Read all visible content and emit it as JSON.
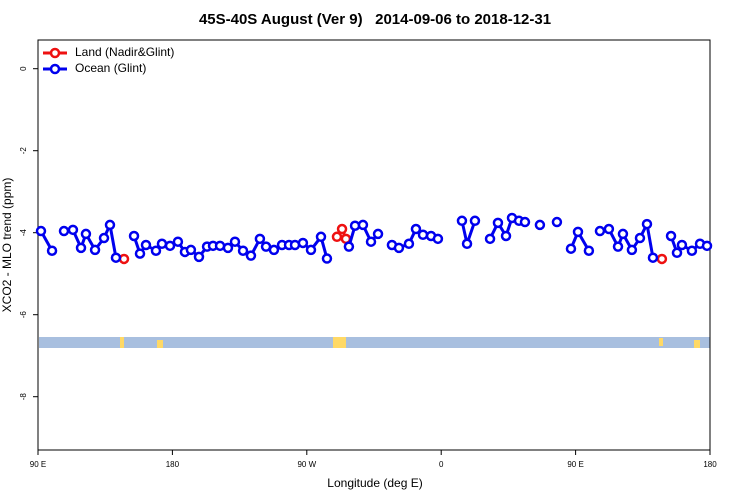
{
  "chart_data": {
    "type": "line",
    "title": "45S-40S August (Ver 9)   2014-09-06 to 2018-12-31",
    "x_label": "Longitude (deg E)",
    "y_label": "XCO2 - MLO trend (ppm)",
    "xlim": [
      90,
      540
    ],
    "ylim": [
      -9.3,
      0.7
    ],
    "xticks": [
      {
        "value": 90,
        "label": "90 E"
      },
      {
        "value": 180,
        "label": "180"
      },
      {
        "value": 270,
        "label": "90 W"
      },
      {
        "value": 360,
        "label": "0"
      },
      {
        "value": 450,
        "label": "90 E"
      },
      {
        "value": 540,
        "label": "180"
      }
    ],
    "yticks": [
      0,
      -2,
      -4,
      -6,
      -8
    ],
    "legend": "top-left",
    "series": [
      {
        "name": "Land (Nadir&Glint)",
        "color": "#ee1111",
        "x": [
          147.6,
          null,
          290.2,
          293.6,
          296.2,
          null,
          507.8
        ],
        "values": [
          -4.64,
          null,
          -4.1,
          -3.91,
          -4.15,
          null,
          -4.64
        ]
      },
      {
        "name": "Ocean (Glint)",
        "color": "#0000ee",
        "x": [
          92.0,
          99.4,
          null,
          107.4,
          113.4,
          118.8,
          122.1,
          128.2,
          134.2,
          138.2,
          142.2,
          null,
          154.3,
          158.3,
          162.3,
          169.0,
          173.0,
          178.4,
          183.7,
          188.4,
          192.4,
          197.8,
          203.2,
          207.2,
          211.9,
          217.2,
          221.9,
          227.3,
          232.6,
          238.6,
          242.7,
          248.0,
          253.4,
          258.1,
          262.1,
          267.4,
          272.8,
          279.5,
          283.5,
          null,
          298.2,
          302.3,
          307.6,
          313.0,
          317.7,
          null,
          327.0,
          331.7,
          338.4,
          343.1,
          347.8,
          353.2,
          357.8,
          null,
          373.9,
          377.3,
          382.6,
          null,
          392.7,
          398.0,
          403.4,
          407.4,
          412.1,
          416.1,
          null,
          426.1,
          null,
          437.5,
          null,
          446.9,
          451.6,
          458.9,
          null,
          466.3,
          472.3,
          478.4,
          481.7,
          487.7,
          493.1,
          497.8,
          501.8,
          null,
          513.9,
          517.9,
          521.2,
          527.9,
          533.3,
          538.0
        ],
        "values": [
          -3.96,
          -4.44,
          null,
          -3.96,
          -3.93,
          -4.37,
          -4.03,
          -4.42,
          -4.13,
          -3.81,
          -4.61,
          null,
          -4.08,
          -4.51,
          -4.3,
          -4.44,
          -4.27,
          -4.32,
          -4.22,
          -4.47,
          -4.42,
          -4.59,
          -4.34,
          -4.32,
          -4.32,
          -4.37,
          -4.22,
          -4.44,
          -4.56,
          -4.15,
          -4.34,
          -4.42,
          -4.3,
          -4.3,
          -4.3,
          -4.25,
          -4.42,
          -4.1,
          -4.63,
          null,
          -4.34,
          -3.83,
          -3.81,
          -4.22,
          -4.03,
          null,
          -4.3,
          -4.37,
          -4.27,
          -3.91,
          -4.05,
          -4.08,
          -4.15,
          null,
          -3.71,
          -4.27,
          -3.71,
          null,
          -4.15,
          -3.76,
          -4.08,
          -3.64,
          -3.71,
          -3.74,
          null,
          -3.81,
          null,
          -3.74,
          null,
          -4.39,
          -3.98,
          -4.44,
          null,
          -3.96,
          -3.91,
          -4.34,
          -4.03,
          -4.42,
          -4.13,
          -3.79,
          -4.61,
          null,
          -4.08,
          -4.49,
          -4.3,
          -4.44,
          -4.27,
          -4.32
        ]
      }
    ]
  }
}
